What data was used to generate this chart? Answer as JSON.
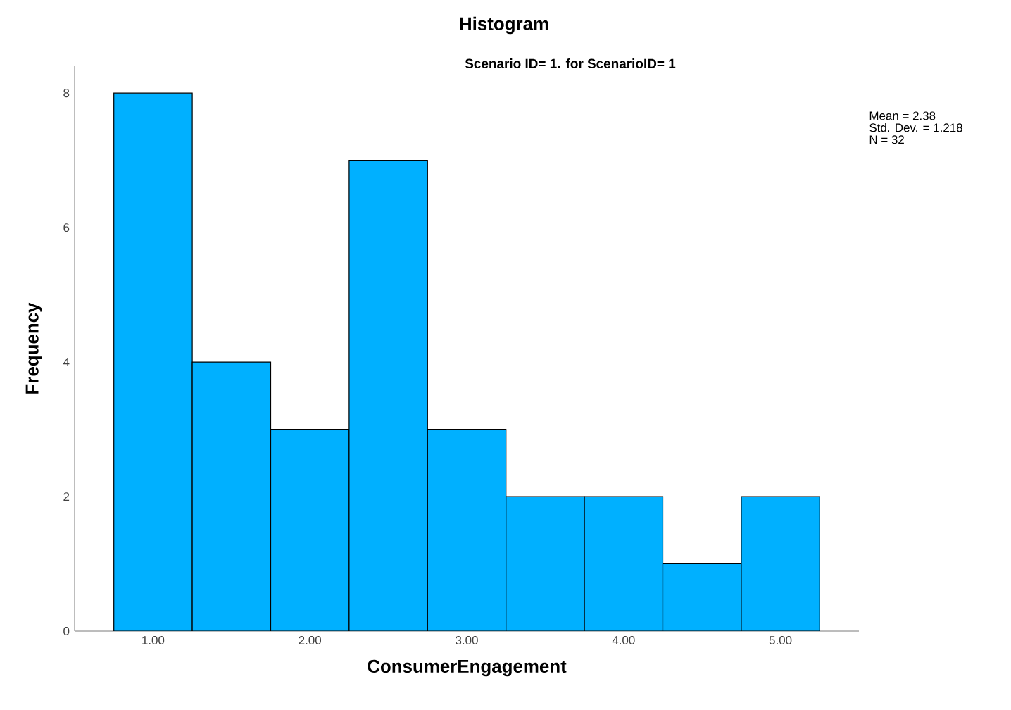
{
  "chart_data": {
    "type": "histogram",
    "title": "Histogram",
    "subtitle": "Scenario ID= 1.  for ScenarioID= 1",
    "xlabel": "ConsumerEngagement",
    "ylabel": "Frequency",
    "annotations": [
      "Mean = 2.38",
      "Std. Dev. = 1.218",
      "N = 32"
    ],
    "bins": [
      0.75,
      1.25,
      1.75,
      2.25,
      2.75,
      3.25,
      3.75,
      4.25,
      4.75,
      5.25
    ],
    "values": [
      8,
      4,
      3,
      7,
      3,
      2,
      2,
      1,
      2
    ],
    "color": "#00b0ff",
    "xlim": [
      0.5,
      5.5
    ],
    "ylim": [
      0,
      8.4
    ],
    "xticks": [
      {
        "value": 1,
        "label": "1.00"
      },
      {
        "value": 2,
        "label": "2.00"
      },
      {
        "value": 3,
        "label": "3.00"
      },
      {
        "value": 4,
        "label": "4.00"
      },
      {
        "value": 5,
        "label": "5.00"
      }
    ],
    "yticks": [
      0,
      2,
      4,
      6,
      8
    ]
  }
}
